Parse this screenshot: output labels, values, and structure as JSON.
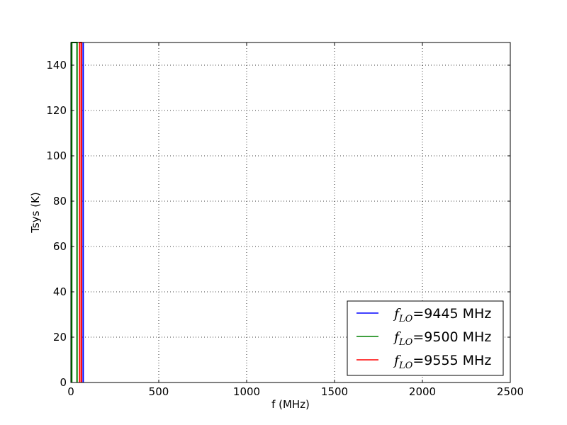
{
  "chart_data": {
    "type": "line",
    "title": "",
    "xlabel": "f (MHz)",
    "ylabel": "Tsys (K)",
    "xlim": [
      0,
      2500
    ],
    "ylim": [
      0,
      150
    ],
    "xticks": [
      0,
      500,
      1000,
      1500,
      2000,
      2500
    ],
    "yticks": [
      0,
      20,
      40,
      60,
      80,
      100,
      120,
      140
    ],
    "grid": true,
    "legend_position": "lower-right",
    "series": [
      {
        "name": "$f_{LO}$=9445 MHz",
        "legend_symbol": "f",
        "legend_subscript": "LO",
        "legend_suffix": "=9445 MHz",
        "color": "#0000ff",
        "x": [
          70,
          70
        ],
        "y": [
          0,
          150
        ]
      },
      {
        "name": "$f_{LO}$=9500 MHz",
        "legend_symbol": "f",
        "legend_subscript": "LO",
        "legend_suffix": "=9500 MHz",
        "color": "#008000",
        "x": [
          5,
          5,
          35,
          35
        ],
        "y": [
          0,
          150,
          150,
          0
        ]
      },
      {
        "name": "$f_{LO}$=9555 MHz",
        "legend_symbol": "f",
        "legend_subscript": "LO",
        "legend_suffix": "=9555 MHz",
        "color": "#ff0000",
        "x": [
          50,
          50,
          60,
          60
        ],
        "y": [
          0,
          150,
          150,
          0
        ]
      }
    ]
  }
}
